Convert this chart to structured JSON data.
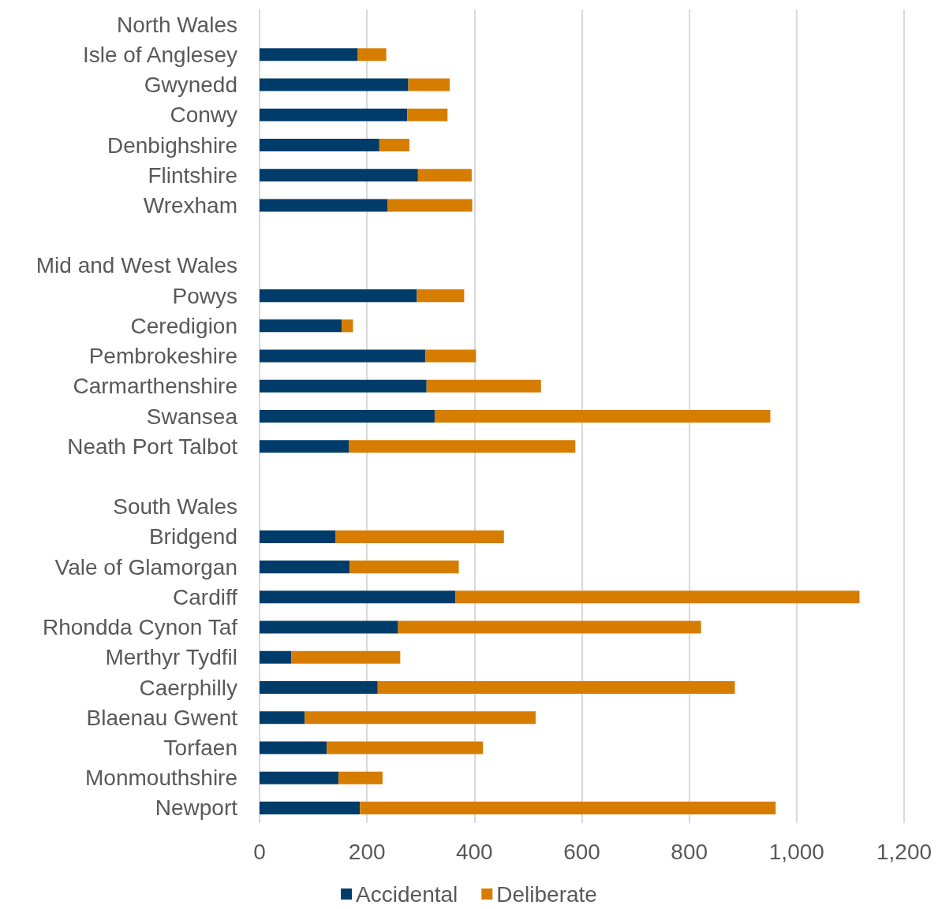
{
  "chart_data": {
    "type": "bar",
    "orientation": "horizontal",
    "stacked": true,
    "categories": [
      "North Wales",
      "Isle of Anglesey",
      "Gwynedd",
      "Conwy",
      "Denbighshire",
      "Flintshire",
      "Wrexham",
      null,
      "Mid and West Wales",
      "Powys",
      "Ceredigion",
      "Pembrokeshire",
      "Carmarthenshire",
      "Swansea",
      "Neath Port Talbot",
      null,
      "South Wales",
      "Bridgend",
      "Vale of Glamorgan",
      "Cardiff",
      "Rhondda Cynon Taf",
      "Merthyr Tydfil",
      "Caerphilly",
      "Blaenau Gwent",
      "Torfaen",
      "Monmouthshire",
      "Newport"
    ],
    "series": [
      {
        "name": "Accidental",
        "color": "#003c69",
        "values": [
          null,
          183,
          277,
          275,
          223,
          295,
          238,
          null,
          null,
          293,
          153,
          309,
          311,
          326,
          166,
          null,
          null,
          141,
          168,
          365,
          258,
          59,
          220,
          84,
          125,
          147,
          187
        ]
      },
      {
        "name": "Deliberate",
        "color": "#d67d00",
        "values": [
          null,
          53,
          77,
          75,
          56,
          100,
          158,
          null,
          null,
          88,
          21,
          94,
          213,
          625,
          422,
          null,
          null,
          314,
          203,
          752,
          564,
          203,
          665,
          430,
          291,
          82,
          774
        ]
      }
    ],
    "xlim": [
      0,
      1200
    ],
    "xticks": [
      0,
      200,
      400,
      600,
      800,
      {
        "value": 1000,
        "label": "1,000"
      },
      {
        "value": 1200,
        "label": "1,200"
      }
    ],
    "grid": "x",
    "legend": "bottom"
  }
}
